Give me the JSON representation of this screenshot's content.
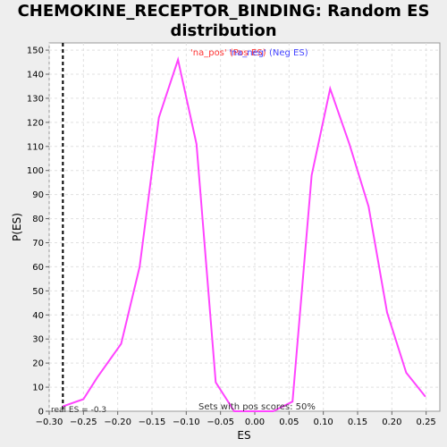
{
  "title_line1": "CHEMOKINE_RECEPTOR_BINDING: Random ES",
  "title_line2": "distribution",
  "legend": {
    "na_pos": "'na_pos' (Pos ES)",
    "na_neg": "'na_neg' (Neg ES)"
  },
  "annotations": {
    "real_es": "real ES = -0.3",
    "pos_scores": "Sets with pos scores: 50%"
  },
  "colors": {
    "line": "#ff44ff",
    "pos_legend": "#ff3333",
    "neg_legend": "#4444ff",
    "real_es_line": "#000000"
  },
  "chart_data": {
    "type": "line",
    "xlabel": "ES",
    "ylabel": "P(ES)",
    "xlim": [
      -0.3,
      0.27
    ],
    "ylim": [
      0,
      153
    ],
    "xticks": [
      -0.3,
      -0.25,
      -0.2,
      -0.15,
      -0.1,
      -0.05,
      0.0,
      0.05,
      0.1,
      0.15,
      0.2,
      0.25
    ],
    "xtick_labels": [
      "−0.30",
      "−0.25",
      "−0.20",
      "−0.15",
      "−0.10",
      "−0.05",
      "0.00",
      "0.05",
      "0.10",
      "0.15",
      "0.20",
      "0.25"
    ],
    "yticks": [
      0,
      10,
      20,
      30,
      40,
      50,
      60,
      70,
      80,
      90,
      100,
      110,
      120,
      130,
      140,
      150
    ],
    "grid": true,
    "real_es": -0.28,
    "series": [
      {
        "x": [
          -0.28,
          -0.25,
          -0.23,
          -0.195,
          -0.168,
          -0.14,
          -0.112,
          -0.085,
          -0.057,
          -0.03,
          0.0,
          0.027,
          0.055,
          0.083,
          0.11,
          0.138,
          0.166,
          0.193,
          0.221,
          0.249
        ],
        "y": [
          2,
          5,
          14,
          28,
          60,
          122,
          146,
          111,
          12,
          0,
          0,
          0,
          4,
          98,
          134,
          111,
          85,
          41,
          16,
          6
        ]
      }
    ]
  }
}
